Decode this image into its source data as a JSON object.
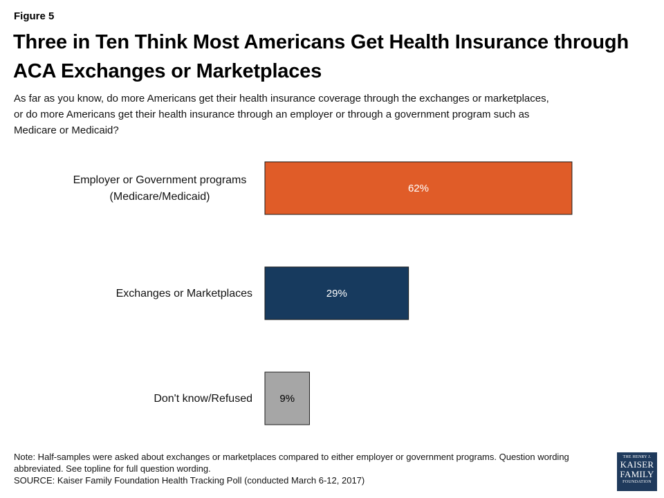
{
  "figure_label": "Figure 5",
  "title": "Three in Ten Think Most Americans Get Health Insurance through ACA Exchanges or Marketplaces",
  "subtitle": "As far as you know, do more Americans get their health insurance coverage through the exchanges or marketplaces, or do more Americans get their health insurance through an employer or through a government program such as Medicare or Medicaid?",
  "note": "Note: Half-samples were asked about exchanges or marketplaces compared to either employer or government programs. Question wording abbreviated. See topline for full question wording.",
  "source": "SOURCE: Kaiser Family Foundation Health Tracking Poll (conducted  March 6-12, 2017)",
  "logo": {
    "line1": "THE HENRY J.",
    "line2": "KAISER",
    "line3": "FAMILY",
    "line4": "FOUNDATION"
  },
  "chart_data": {
    "type": "bar",
    "orientation": "horizontal",
    "categories": [
      [
        "Employer or Government programs",
        "(Medicare/Medicaid)"
      ],
      [
        "Exchanges or Marketplaces"
      ],
      [
        "Don't know/Refused"
      ]
    ],
    "values": [
      62,
      29,
      9
    ],
    "value_labels": [
      "62%",
      "29%",
      "9%"
    ],
    "colors": [
      "#e05c28",
      "#173a5e",
      "#a6a6a6"
    ],
    "label_colors": [
      "#ffffff",
      "#ffffff",
      "#000000"
    ],
    "xlim": [
      0,
      100
    ],
    "grid": false,
    "legend": "none"
  }
}
